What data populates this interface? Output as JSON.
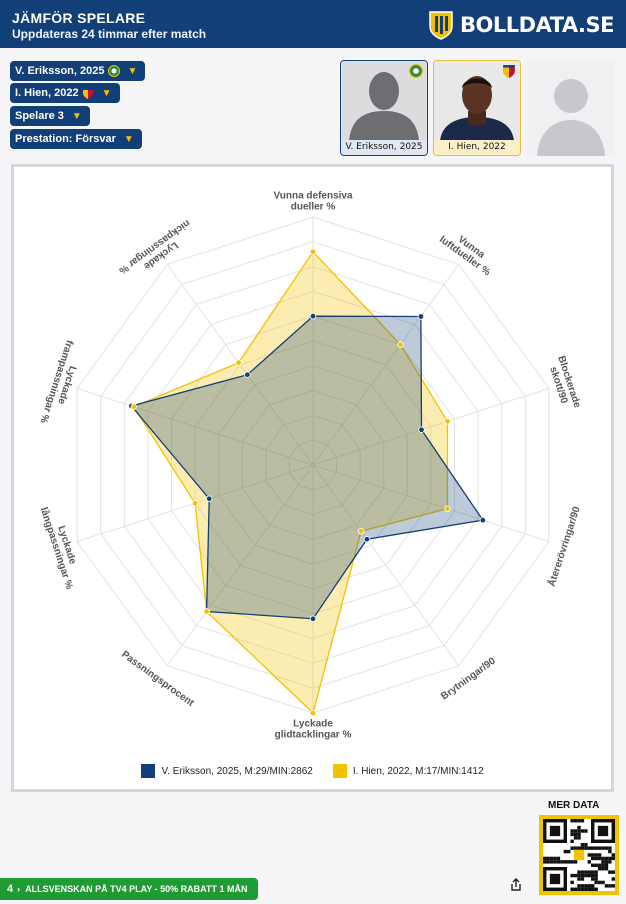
{
  "header": {
    "title": "JÄMFÖR SPELARE",
    "subtitle": "Uppdateras 24 timmar efter match",
    "brand": "BOLLDATA.SE"
  },
  "selectors": {
    "player1": "V. Eriksson, 2025",
    "player2": "I. Hien, 2022",
    "player3": "Spelare 3",
    "prestation": "Prestation: Försvar"
  },
  "cards": {
    "player1": "V. Eriksson, 2025",
    "player2": "I. Hien, 2022"
  },
  "chart_data": {
    "type": "radar",
    "axes": [
      "Vunna defensiva dueller %",
      "Vunna luftdueller %",
      "Blockerade skott/90",
      "Återerövringar/90",
      "Brytningar/90",
      "Lyckade glidtacklingar %",
      "Passningsprocent",
      "Lyckade långpassningar %",
      "Lyckade frampassningar %",
      "Lyckade nickpassningar %"
    ],
    "axis_label_lines": [
      [
        "Vunna defensiva",
        "dueller %"
      ],
      [
        "Vunna",
        "luftdueller %"
      ],
      [
        "Blockerade",
        "skott/90"
      ],
      [
        "Återerövringar/90"
      ],
      [
        "Brytningar/90"
      ],
      [
        "Lyckade",
        "glidtacklingar %"
      ],
      [
        "Passningsprocent"
      ],
      [
        "Lyckade",
        "långpassningar %"
      ],
      [
        "Lyckade",
        "frampassningar %"
      ],
      [
        "Lyckade",
        "nickpassningar %"
      ]
    ],
    "range": [
      0,
      1
    ],
    "rings": 10,
    "grid": true,
    "legend_position": "bottom",
    "series": [
      {
        "name": "V. Eriksson, 2025, M:29/MIN:2862",
        "color": "#123f78",
        "fill": "rgba(18,63,120,0.28)",
        "values": [
          0.6,
          0.74,
          0.46,
          0.72,
          0.37,
          0.62,
          0.73,
          0.44,
          0.77,
          0.45
        ]
      },
      {
        "name": "I. Hien, 2022, M:17/MIN:1412",
        "color": "#f2c200",
        "fill": "rgba(242,194,0,0.30)",
        "values": [
          0.86,
          0.6,
          0.57,
          0.57,
          0.33,
          1.0,
          0.73,
          0.5,
          0.76,
          0.51
        ]
      }
    ]
  },
  "footer": {
    "mer_data": "MER DATA",
    "ad_text": "ALLSVENSKAN PÅ TV4 PLAY - 50% RABATT 1 MÅN",
    "ad_number": "4"
  }
}
